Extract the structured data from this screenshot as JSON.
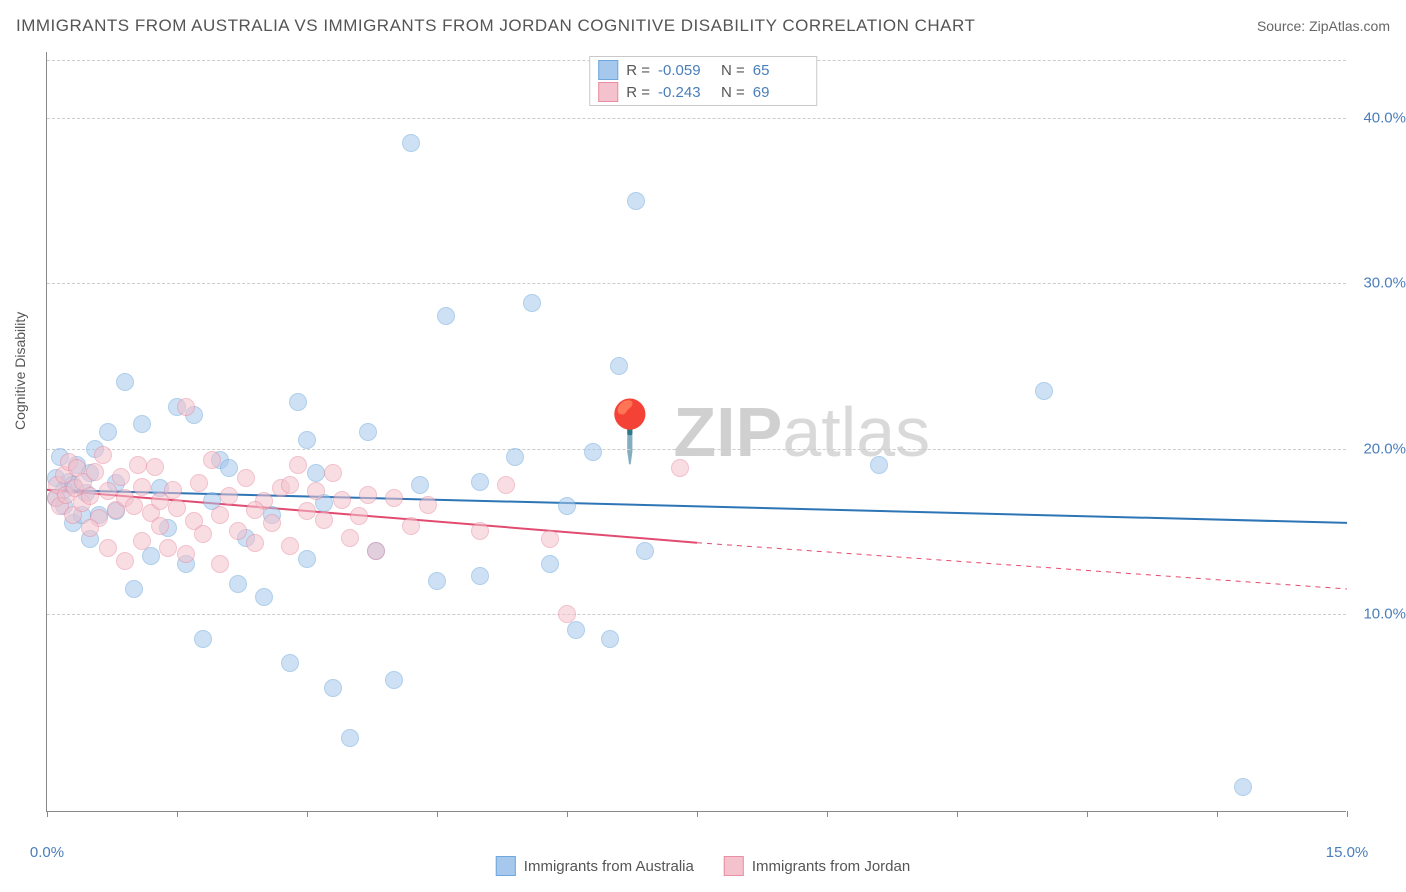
{
  "title": "IMMIGRANTS FROM AUSTRALIA VS IMMIGRANTS FROM JORDAN COGNITIVE DISABILITY CORRELATION CHART",
  "source_label": "Source: ZipAtlas.com",
  "y_axis_label": "Cognitive Disability",
  "watermark_bold": "ZIP",
  "watermark_rest": "atlas",
  "chart": {
    "type": "scatter",
    "xlim": [
      0,
      15
    ],
    "ylim": [
      -2,
      44
    ],
    "x_ticks": [
      0,
      1.5,
      3,
      4.5,
      6,
      7.5,
      9,
      10.5,
      12,
      13.5,
      15
    ],
    "x_tick_labels": {
      "0": "0.0%",
      "15": "15.0%"
    },
    "y_gridlines": [
      10,
      20,
      30,
      40
    ],
    "y_tick_labels": {
      "10": "10.0%",
      "20": "20.0%",
      "30": "30.0%",
      "40": "40.0%"
    },
    "grid_color": "#cccccc",
    "background": "#ffffff",
    "marker_radius": 9,
    "marker_opacity": 0.55,
    "series": [
      {
        "name": "Immigrants from Australia",
        "color_fill": "#a6c8ec",
        "color_stroke": "#6fa8dc",
        "R": "-0.059",
        "N": "65",
        "trend": {
          "x1": 0,
          "y1": 17.5,
          "x2": 15,
          "y2": 15.5,
          "color": "#2e75b6",
          "width": 2,
          "dash_from_x": 15
        },
        "points": [
          [
            0.1,
            17.0
          ],
          [
            0.1,
            18.2
          ],
          [
            0.15,
            19.5
          ],
          [
            0.2,
            16.5
          ],
          [
            0.2,
            17.5
          ],
          [
            0.25,
            18.0
          ],
          [
            0.3,
            15.5
          ],
          [
            0.3,
            17.8
          ],
          [
            0.35,
            19.0
          ],
          [
            0.4,
            16.0
          ],
          [
            0.45,
            17.3
          ],
          [
            0.5,
            14.5
          ],
          [
            0.5,
            18.5
          ],
          [
            0.55,
            20.0
          ],
          [
            0.7,
            21.0
          ],
          [
            0.8,
            16.2
          ],
          [
            0.9,
            24.0
          ],
          [
            1.0,
            11.5
          ],
          [
            1.1,
            21.5
          ],
          [
            1.2,
            13.5
          ],
          [
            1.3,
            17.6
          ],
          [
            1.5,
            22.5
          ],
          [
            1.6,
            13.0
          ],
          [
            1.7,
            22.0
          ],
          [
            1.8,
            8.5
          ],
          [
            1.9,
            16.8
          ],
          [
            2.0,
            19.3
          ],
          [
            2.2,
            11.8
          ],
          [
            2.3,
            14.6
          ],
          [
            2.5,
            11.0
          ],
          [
            2.6,
            16.0
          ],
          [
            2.8,
            7.0
          ],
          [
            2.9,
            22.8
          ],
          [
            3.0,
            20.5
          ],
          [
            3.0,
            13.3
          ],
          [
            3.2,
            16.7
          ],
          [
            3.3,
            5.5
          ],
          [
            3.5,
            2.5
          ],
          [
            3.7,
            21.0
          ],
          [
            3.8,
            13.8
          ],
          [
            4.0,
            6.0
          ],
          [
            4.2,
            38.5
          ],
          [
            4.3,
            17.8
          ],
          [
            4.5,
            12.0
          ],
          [
            4.6,
            28.0
          ],
          [
            5.0,
            18.0
          ],
          [
            5.0,
            12.3
          ],
          [
            5.4,
            19.5
          ],
          [
            5.6,
            28.8
          ],
          [
            5.8,
            13.0
          ],
          [
            6.0,
            16.5
          ],
          [
            6.1,
            9.0
          ],
          [
            6.3,
            19.8
          ],
          [
            6.5,
            8.5
          ],
          [
            6.6,
            25.0
          ],
          [
            6.8,
            35.0
          ],
          [
            6.9,
            13.8
          ],
          [
            9.6,
            19.0
          ],
          [
            11.5,
            23.5
          ],
          [
            13.8,
            -0.5
          ],
          [
            3.1,
            18.5
          ],
          [
            0.6,
            16.0
          ],
          [
            0.8,
            17.9
          ],
          [
            1.4,
            15.2
          ],
          [
            2.1,
            18.8
          ]
        ]
      },
      {
        "name": "Immigrants from Jordan",
        "color_fill": "#f4c2cd",
        "color_stroke": "#e98fa4",
        "R": "-0.243",
        "N": "69",
        "trend": {
          "x1": 0,
          "y1": 17.5,
          "x2": 7.5,
          "y2": 14.3,
          "color": "#e24b70",
          "width": 2,
          "dash_from_x": 7.5,
          "dash_to": [
            15,
            11.5
          ]
        },
        "points": [
          [
            0.1,
            17.0
          ],
          [
            0.12,
            17.8
          ],
          [
            0.15,
            16.5
          ],
          [
            0.2,
            18.4
          ],
          [
            0.22,
            17.2
          ],
          [
            0.25,
            19.2
          ],
          [
            0.3,
            16.0
          ],
          [
            0.32,
            17.6
          ],
          [
            0.35,
            18.8
          ],
          [
            0.4,
            16.7
          ],
          [
            0.42,
            18.0
          ],
          [
            0.5,
            17.1
          ],
          [
            0.55,
            18.6
          ],
          [
            0.6,
            15.8
          ],
          [
            0.65,
            19.6
          ],
          [
            0.7,
            17.4
          ],
          [
            0.8,
            16.3
          ],
          [
            0.85,
            18.3
          ],
          [
            0.9,
            17.0
          ],
          [
            1.0,
            16.5
          ],
          [
            1.05,
            19.0
          ],
          [
            1.1,
            17.7
          ],
          [
            1.2,
            16.1
          ],
          [
            1.25,
            18.9
          ],
          [
            1.3,
            15.3
          ],
          [
            1.4,
            14.0
          ],
          [
            1.45,
            17.5
          ],
          [
            1.5,
            16.4
          ],
          [
            1.6,
            22.5
          ],
          [
            1.7,
            15.6
          ],
          [
            1.75,
            17.9
          ],
          [
            1.8,
            14.8
          ],
          [
            1.9,
            19.3
          ],
          [
            2.0,
            16.0
          ],
          [
            2.1,
            17.1
          ],
          [
            2.2,
            15.0
          ],
          [
            2.3,
            18.2
          ],
          [
            2.4,
            14.3
          ],
          [
            2.5,
            16.8
          ],
          [
            2.6,
            15.5
          ],
          [
            2.7,
            17.6
          ],
          [
            2.8,
            14.1
          ],
          [
            2.9,
            19.0
          ],
          [
            3.0,
            16.2
          ],
          [
            3.1,
            17.4
          ],
          [
            3.2,
            15.7
          ],
          [
            3.3,
            18.5
          ],
          [
            3.4,
            16.9
          ],
          [
            3.5,
            14.6
          ],
          [
            3.6,
            15.9
          ],
          [
            3.7,
            17.2
          ],
          [
            3.8,
            13.8
          ],
          [
            4.0,
            17.0
          ],
          [
            4.2,
            15.3
          ],
          [
            4.4,
            16.6
          ],
          [
            5.0,
            15.0
          ],
          [
            5.3,
            17.8
          ],
          [
            5.8,
            14.5
          ],
          [
            6.0,
            10.0
          ],
          [
            7.3,
            18.8
          ],
          [
            0.9,
            13.2
          ],
          [
            1.1,
            14.4
          ],
          [
            1.6,
            13.6
          ],
          [
            2.0,
            13.0
          ],
          [
            2.4,
            16.3
          ],
          [
            2.8,
            17.8
          ],
          [
            0.5,
            15.2
          ],
          [
            0.7,
            14.0
          ],
          [
            1.3,
            16.8
          ]
        ]
      }
    ]
  },
  "stats_legend_labels": {
    "R": "R =",
    "N": "N ="
  }
}
